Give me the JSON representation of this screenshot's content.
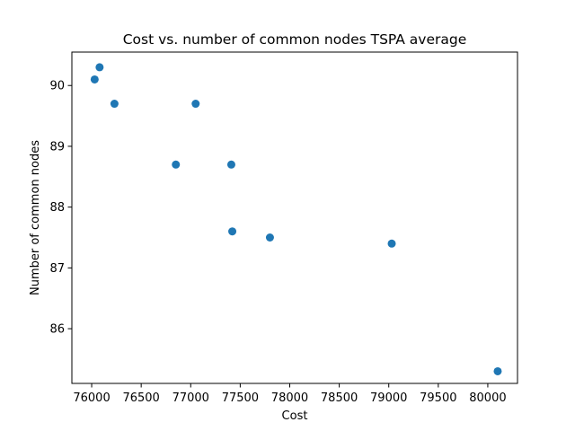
{
  "chart_data": {
    "type": "scatter",
    "title": "Cost vs. number of common nodes TSPA average",
    "xlabel": "Cost",
    "ylabel": "Number of common nodes",
    "xlim": [
      75800,
      80300
    ],
    "ylim": [
      85.1,
      90.55
    ],
    "x_ticks": [
      76000,
      76500,
      77000,
      77500,
      78000,
      78500,
      79000,
      79500,
      80000
    ],
    "x_tick_labels": [
      "76000",
      "76500",
      "77000",
      "77500",
      "78000",
      "78500",
      "79000",
      "79500",
      "80000"
    ],
    "y_ticks": [
      86,
      87,
      88,
      89,
      90
    ],
    "y_tick_labels": [
      "86",
      "87",
      "88",
      "89",
      "90"
    ],
    "grid": false,
    "marker_color": "#1f77b4",
    "points": [
      {
        "x": 76030,
        "y": 90.1
      },
      {
        "x": 76080,
        "y": 90.3
      },
      {
        "x": 76230,
        "y": 89.7
      },
      {
        "x": 76850,
        "y": 88.7
      },
      {
        "x": 77050,
        "y": 89.7
      },
      {
        "x": 77410,
        "y": 88.7
      },
      {
        "x": 77420,
        "y": 87.6
      },
      {
        "x": 77800,
        "y": 87.5
      },
      {
        "x": 79030,
        "y": 87.4
      },
      {
        "x": 80100,
        "y": 85.3
      }
    ]
  }
}
